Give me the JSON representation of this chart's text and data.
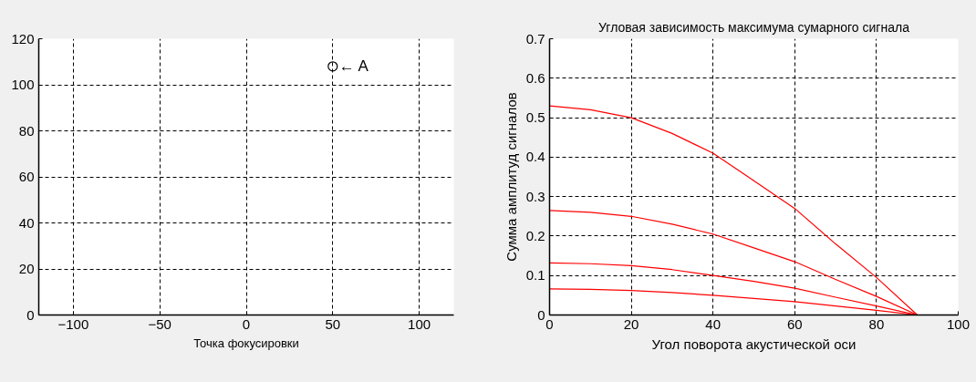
{
  "chart_data": [
    {
      "type": "scatter",
      "xlabel": "Точка фокусировки",
      "x": [
        50
      ],
      "values": [
        108
      ],
      "color": "#000000",
      "marker": "circle",
      "xlim": [
        -120,
        120
      ],
      "ylim": [
        0,
        120
      ],
      "xticks": [
        -100,
        -50,
        0,
        50,
        100
      ],
      "yticks": [
        0,
        20,
        40,
        60,
        80,
        100,
        120
      ],
      "grid": true,
      "annotations": [
        {
          "text": "← A",
          "x": 50,
          "y": 108
        }
      ]
    },
    {
      "type": "line",
      "title": "Угловая зависимость максимума сумарного сигнала",
      "xlabel": "Угол поворота акустической оси",
      "ylabel": "Сумма амплитуд сигналов",
      "x": [
        0,
        10,
        20,
        30,
        40,
        50,
        60,
        70,
        80,
        90
      ],
      "series": [
        {
          "color": "#ff0000",
          "values": [
            0.53,
            0.52,
            0.5,
            0.46,
            0.41,
            0.34,
            0.27,
            0.18,
            0.095,
            0
          ]
        },
        {
          "color": "#ff0000",
          "values": [
            0.265,
            0.26,
            0.25,
            0.23,
            0.205,
            0.17,
            0.135,
            0.09,
            0.047,
            0
          ]
        },
        {
          "color": "#ff0000",
          "values": [
            0.132,
            0.13,
            0.125,
            0.115,
            0.1,
            0.085,
            0.068,
            0.045,
            0.023,
            0
          ]
        },
        {
          "color": "#ff0000",
          "values": [
            0.066,
            0.065,
            0.062,
            0.057,
            0.05,
            0.042,
            0.034,
            0.023,
            0.012,
            0
          ]
        }
      ],
      "xlim": [
        0,
        100
      ],
      "ylim": [
        0,
        0.7
      ],
      "xticks": [
        0,
        20,
        40,
        60,
        80,
        100
      ],
      "yticks": [
        0,
        0.1,
        0.2,
        0.3,
        0.4,
        0.5,
        0.6,
        0.7
      ],
      "grid": true,
      "marker": "none",
      "line_style": "solid"
    }
  ]
}
